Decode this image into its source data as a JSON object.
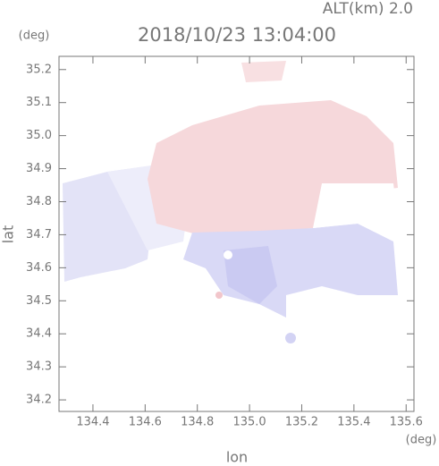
{
  "chart_data": {
    "type": "map",
    "title": "2018/10/23 13:04:00",
    "subtitle": "ALT(km) 2.0",
    "x_label": "lon",
    "y_label": "lat",
    "x_unit": "(deg)",
    "y_unit": "(deg)",
    "xlim": [
      134.27,
      135.63
    ],
    "ylim": [
      34.165,
      35.24
    ],
    "xticks": [
      134.4,
      134.6,
      134.8,
      {
        "value": 135,
        "label": "135.0"
      },
      135.2,
      135.4,
      135.6
    ],
    "yticks": [
      34.2,
      34.3,
      34.4,
      34.5,
      34.6,
      34.7,
      34.8,
      34.9,
      {
        "value": 35,
        "label": "35.0"
      },
      35.1,
      35.2
    ]
  }
}
